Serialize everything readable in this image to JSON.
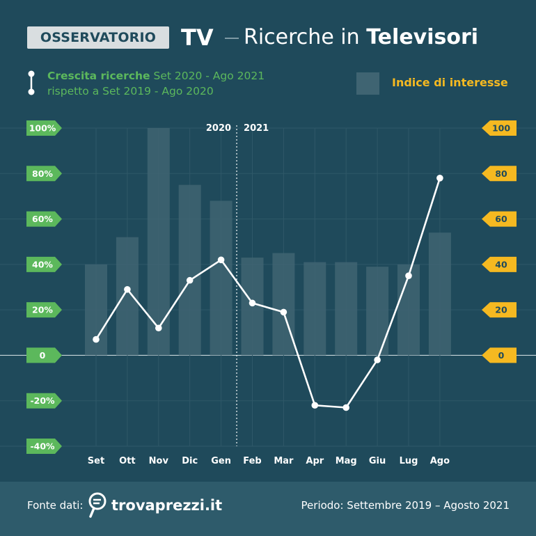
{
  "header": {
    "badge": "OSSERVATORIO",
    "title_tv": "TV",
    "title_prefix": "Ricerche in ",
    "title_bold": "Televisori"
  },
  "legend": {
    "line_strong": "Crescita ricerche",
    "line_rest": " Set 2020 - Ago 2021",
    "line_second": "rispetto a Set 2019 - Ago 2020",
    "bar_label": "Indice di interesse"
  },
  "colors": {
    "background": "#1f4a5b",
    "footer": "#2e5b6b",
    "green": "#5cb85c",
    "yellow": "#f5b921",
    "bar": "#3f6472",
    "line": "#ffffff"
  },
  "chart_data": {
    "type": "bar",
    "categories": [
      "Set",
      "Ott",
      "Nov",
      "Dic",
      "Gen",
      "Feb",
      "Mar",
      "Apr",
      "Mag",
      "Giu",
      "Lug",
      "Ago"
    ],
    "series": [
      {
        "name": "Indice di interesse",
        "type": "bar",
        "axis": "right",
        "values": [
          40,
          52,
          100,
          75,
          68,
          43,
          45,
          41,
          41,
          39,
          40,
          54
        ]
      },
      {
        "name": "Crescita ricerche Set 2020 - Ago 2021 rispetto a Set 2019 - Ago 2020",
        "type": "line",
        "axis": "left",
        "values": [
          7,
          29,
          12,
          33,
          42,
          23,
          19,
          -22,
          -23,
          -2,
          35,
          78
        ]
      }
    ],
    "left_axis": {
      "ylim": [
        -40,
        100
      ],
      "ticks": [
        100,
        80,
        60,
        40,
        20,
        0,
        -20,
        -40
      ],
      "tick_labels": [
        "100%",
        "80%",
        "60%",
        "40%",
        "20%",
        "0",
        "-20%",
        "-40%"
      ]
    },
    "right_axis": {
      "ylim": [
        0,
        100
      ],
      "ticks": [
        100,
        80,
        60,
        40,
        20,
        0
      ],
      "tick_labels": [
        "100",
        "80",
        "60",
        "40",
        "20",
        "0"
      ]
    },
    "year_divider": {
      "after_category": "Gen",
      "left_label": "2020",
      "right_label": "2021"
    },
    "grid": true
  },
  "footer": {
    "source_label": "Fonte dati:",
    "brand": "trovaprezzi.it",
    "period": "Periodo: Settembre 2019 – Agosto 2021"
  }
}
